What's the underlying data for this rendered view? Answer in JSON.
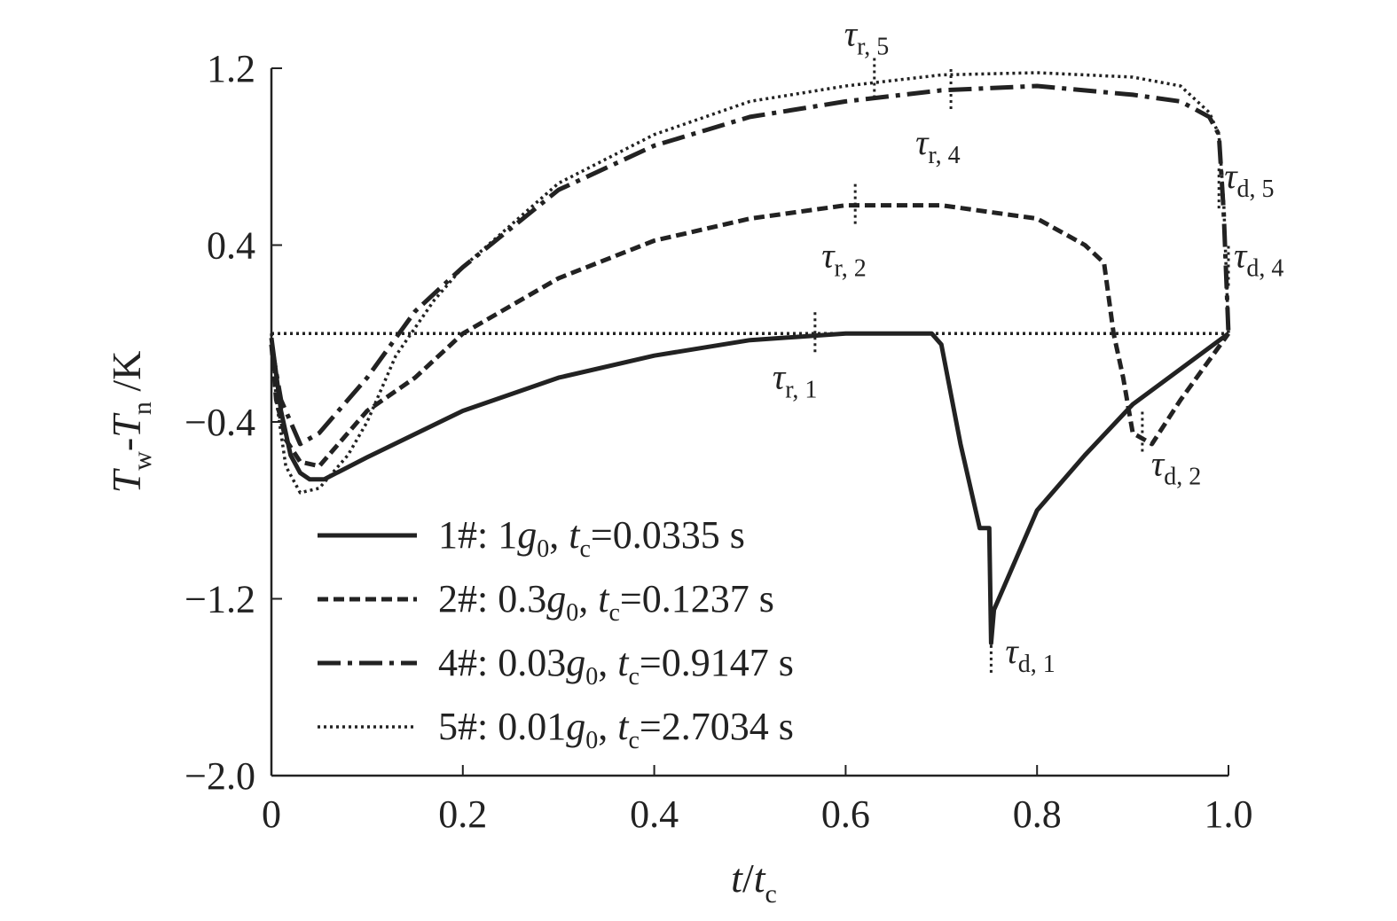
{
  "chart_data": {
    "type": "line",
    "xlabel": "t/t_c",
    "ylabel": "T_w-T_n/K",
    "xlim": [
      0,
      1.0
    ],
    "ylim": [
      -2.0,
      1.2
    ],
    "x_ticks": [
      {
        "value": 0,
        "label": "0"
      },
      {
        "value": 0.2,
        "label": "0.2"
      },
      {
        "value": 0.4,
        "label": "0.4"
      },
      {
        "value": 0.6,
        "label": "0.6"
      },
      {
        "value": 0.8,
        "label": "0.8"
      },
      {
        "value": 1.0,
        "label": "1.0"
      }
    ],
    "y_ticks": [
      {
        "value": 1.2,
        "label": "1.2"
      },
      {
        "value": 0.4,
        "label": "0.4"
      },
      {
        "value": -0.4,
        "label": "−0.4"
      },
      {
        "value": -1.2,
        "label": "−1.2"
      },
      {
        "value": -2.0,
        "label": "−2.0"
      }
    ],
    "grid": false,
    "legend_position": "bottom-left",
    "series": [
      {
        "name": "1#: 1g0, tc=0.0335 s",
        "legend": {
          "id": "1#: ",
          "coef": "1",
          "tval": "=0.0335 s"
        },
        "style": "solid",
        "points": [
          [
            0,
            -0.02
          ],
          [
            0.01,
            -0.35
          ],
          [
            0.02,
            -0.55
          ],
          [
            0.03,
            -0.63
          ],
          [
            0.04,
            -0.66
          ],
          [
            0.055,
            -0.66
          ],
          [
            0.1,
            -0.56
          ],
          [
            0.2,
            -0.35
          ],
          [
            0.3,
            -0.2
          ],
          [
            0.4,
            -0.1
          ],
          [
            0.5,
            -0.03
          ],
          [
            0.6,
            0.0
          ],
          [
            0.69,
            0.0
          ],
          [
            0.7,
            -0.05
          ],
          [
            0.72,
            -0.5
          ],
          [
            0.74,
            -0.88
          ],
          [
            0.75,
            -0.88
          ],
          [
            0.752,
            -1.4
          ],
          [
            0.755,
            -1.25
          ],
          [
            0.77,
            -1.1
          ],
          [
            0.8,
            -0.8
          ],
          [
            0.85,
            -0.55
          ],
          [
            0.9,
            -0.32
          ],
          [
            0.95,
            -0.16
          ],
          [
            1.0,
            0.0
          ]
        ]
      },
      {
        "name": "2#: 0.3g0, tc=0.1237 s",
        "legend": {
          "id": "2#: ",
          "coef": "0.3",
          "tval": "=0.1237 s"
        },
        "style": "dashed",
        "points": [
          [
            0,
            -0.05
          ],
          [
            0.005,
            -0.3
          ],
          [
            0.015,
            -0.48
          ],
          [
            0.03,
            -0.58
          ],
          [
            0.05,
            -0.6
          ],
          [
            0.07,
            -0.5
          ],
          [
            0.1,
            -0.35
          ],
          [
            0.15,
            -0.2
          ],
          [
            0.2,
            0.0
          ],
          [
            0.3,
            0.25
          ],
          [
            0.4,
            0.42
          ],
          [
            0.5,
            0.52
          ],
          [
            0.6,
            0.58
          ],
          [
            0.7,
            0.58
          ],
          [
            0.8,
            0.52
          ],
          [
            0.85,
            0.4
          ],
          [
            0.87,
            0.32
          ],
          [
            0.88,
            0.0
          ],
          [
            0.89,
            -0.2
          ],
          [
            0.9,
            -0.45
          ],
          [
            0.92,
            -0.5
          ],
          [
            0.95,
            -0.3
          ],
          [
            1.0,
            0.0
          ]
        ]
      },
      {
        "name": "4#: 0.03g0, tc=0.9147 s",
        "legend": {
          "id": "4#: ",
          "coef": "0.03",
          "tval": "=0.9147 s"
        },
        "style": "dashdot",
        "points": [
          [
            0,
            -0.05
          ],
          [
            0.01,
            -0.3
          ],
          [
            0.03,
            -0.5
          ],
          [
            0.05,
            -0.45
          ],
          [
            0.1,
            -0.2
          ],
          [
            0.15,
            0.1
          ],
          [
            0.2,
            0.3
          ],
          [
            0.3,
            0.65
          ],
          [
            0.4,
            0.85
          ],
          [
            0.5,
            0.98
          ],
          [
            0.6,
            1.05
          ],
          [
            0.7,
            1.1
          ],
          [
            0.8,
            1.12
          ],
          [
            0.9,
            1.08
          ],
          [
            0.95,
            1.05
          ],
          [
            0.98,
            0.98
          ],
          [
            0.99,
            0.9
          ],
          [
            0.995,
            0.55
          ],
          [
            1.0,
            0.0
          ]
        ]
      },
      {
        "name": "5#: 0.01g0, tc=2.7034 s",
        "legend": {
          "id": "5#: ",
          "coef": "0.01",
          "tval": "=2.7034 s"
        },
        "style": "dotted",
        "points": [
          [
            0,
            0.0
          ],
          [
            0.005,
            -0.3
          ],
          [
            0.015,
            -0.6
          ],
          [
            0.03,
            -0.72
          ],
          [
            0.05,
            -0.7
          ],
          [
            0.08,
            -0.55
          ],
          [
            0.1,
            -0.4
          ],
          [
            0.13,
            -0.1
          ],
          [
            0.17,
            0.15
          ],
          [
            0.2,
            0.3
          ],
          [
            0.3,
            0.68
          ],
          [
            0.4,
            0.9
          ],
          [
            0.5,
            1.05
          ],
          [
            0.6,
            1.12
          ],
          [
            0.7,
            1.17
          ],
          [
            0.8,
            1.18
          ],
          [
            0.9,
            1.16
          ],
          [
            0.95,
            1.12
          ],
          [
            0.98,
            1.0
          ],
          [
            0.99,
            0.9
          ],
          [
            0.995,
            0.6
          ],
          [
            1.0,
            0.0
          ]
        ]
      }
    ],
    "baseline": {
      "y": 0.0,
      "x_from": 0.0,
      "x_to": 1.0,
      "style": "dotted"
    },
    "annotations": [
      {
        "base": "τ",
        "sub": "r, 1",
        "marker": [
          0.568,
          0.0
        ]
      },
      {
        "base": "τ",
        "sub": "r, 2",
        "marker": [
          0.61,
          0.58
        ]
      },
      {
        "base": "τ",
        "sub": "r, 4",
        "marker": [
          0.71,
          1.1
        ]
      },
      {
        "base": "τ",
        "sub": "r, 5",
        "marker": [
          0.63,
          1.15
        ]
      },
      {
        "base": "τ",
        "sub": "d, 1",
        "marker": [
          0.752,
          -1.45
        ]
      },
      {
        "base": "τ",
        "sub": "d, 2",
        "marker": [
          0.91,
          -0.45
        ]
      },
      {
        "base": "τ",
        "sub": "d, 4",
        "marker": [
          1.0,
          0.3
        ]
      },
      {
        "base": "τ",
        "sub": "d, 5",
        "marker": [
          0.99,
          0.65
        ]
      }
    ]
  }
}
